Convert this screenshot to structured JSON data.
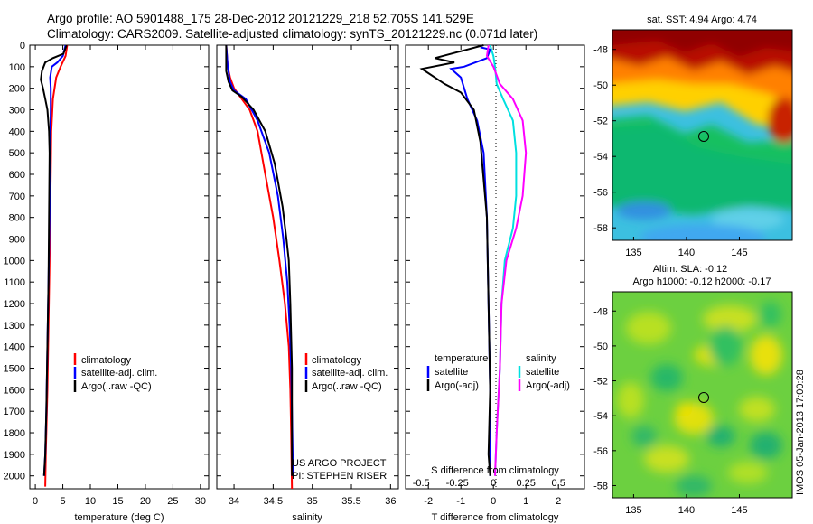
{
  "header": {
    "line1": "Argo profile: AO 5901488_175 28-Dec-2012 20121229_218 52.705S 141.529E",
    "line2": "Climatology: CARS2009. Satellite-adjusted climatology: synTS_20121229.nc (0.071d later)"
  },
  "colors": {
    "climatology": "#ff0000",
    "satellite": "#0000ff",
    "argo": "#000000",
    "sat_salinity": "#00e0e0",
    "argo_salinity": "#ff00ff"
  },
  "chart_data": [
    {
      "id": "temperature",
      "type": "line",
      "xlabel": "temperature (deg C)",
      "ylabel": "",
      "xlim": [
        -1,
        31.5
      ],
      "ylim": [
        2060,
        0
      ],
      "xticks": [
        0,
        5,
        10,
        15,
        20,
        25,
        30
      ],
      "yticks": [
        0,
        100,
        200,
        300,
        400,
        500,
        600,
        700,
        800,
        900,
        1000,
        1100,
        1200,
        1300,
        1400,
        1500,
        1600,
        1700,
        1800,
        1900,
        2000
      ],
      "legend": [
        "climatology",
        "satellite-adj. clim.",
        "Argo(..raw -QC)"
      ],
      "series": [
        {
          "name": "climatology",
          "color": "#ff0000",
          "points": [
            [
              5.8,
              0
            ],
            [
              5.5,
              50
            ],
            [
              4.6,
              100
            ],
            [
              3.8,
              150
            ],
            [
              3.2,
              250
            ],
            [
              2.9,
              400
            ],
            [
              2.8,
              600
            ],
            [
              2.7,
              800
            ],
            [
              2.6,
              1000
            ],
            [
              2.4,
              1300
            ],
            [
              2.2,
              1600
            ],
            [
              1.9,
              1900
            ],
            [
              1.8,
              2050
            ]
          ]
        },
        {
          "name": "satellite-adj. clim.",
          "color": "#0000ff",
          "points": [
            [
              5.5,
              0
            ],
            [
              5.0,
              50
            ],
            [
              4.0,
              80
            ],
            [
              3.0,
              100
            ],
            [
              2.7,
              150
            ],
            [
              2.8,
              200
            ],
            [
              2.8,
              300
            ],
            [
              2.7,
              500
            ],
            [
              2.6,
              800
            ],
            [
              2.4,
              1100
            ],
            [
              2.2,
              1400
            ],
            [
              2.0,
              1700
            ],
            [
              1.8,
              1900
            ],
            [
              1.6,
              2000
            ]
          ]
        },
        {
          "name": "Argo(..raw -QC)",
          "color": "#000000",
          "points": [
            [
              5.7,
              0
            ],
            [
              5.1,
              40
            ],
            [
              3.2,
              60
            ],
            [
              1.8,
              80
            ],
            [
              1.2,
              120
            ],
            [
              1.0,
              160
            ],
            [
              1.4,
              200
            ],
            [
              1.8,
              250
            ],
            [
              2.2,
              300
            ],
            [
              2.5,
              400
            ],
            [
              2.6,
              500
            ],
            [
              2.5,
              800
            ],
            [
              2.4,
              1100
            ],
            [
              2.2,
              1400
            ],
            [
              2.0,
              1700
            ],
            [
              1.8,
              1900
            ],
            [
              1.6,
              2000
            ]
          ]
        }
      ]
    },
    {
      "id": "salinity",
      "type": "line",
      "xlabel": "salinity",
      "ylabel": "",
      "xlim": [
        33.78,
        36.1
      ],
      "ylim": [
        2060,
        0
      ],
      "xticks": [
        34,
        34.5,
        35,
        35.5,
        36
      ],
      "xticklabels": [
        "34",
        "34.5",
        "35",
        "35.5",
        "36"
      ],
      "legend": [
        "climatology",
        "satellite-adj. clim.",
        "Argo(..raw -QC)"
      ],
      "annotations": [
        "US ARGO PROJECT",
        "PI: STEPHEN RISER"
      ],
      "series": [
        {
          "name": "climatology",
          "color": "#ff0000",
          "points": [
            [
              33.9,
              0
            ],
            [
              33.92,
              100
            ],
            [
              33.95,
              150
            ],
            [
              34.0,
              200
            ],
            [
              34.1,
              250
            ],
            [
              34.2,
              300
            ],
            [
              34.3,
              400
            ],
            [
              34.4,
              600
            ],
            [
              34.5,
              800
            ],
            [
              34.58,
              1000
            ],
            [
              34.65,
              1200
            ],
            [
              34.7,
              1400
            ],
            [
              34.72,
              1600
            ],
            [
              34.73,
              1800
            ],
            [
              34.74,
              2060
            ]
          ]
        },
        {
          "name": "satellite-adj. clim.",
          "color": "#0000ff",
          "points": [
            [
              33.9,
              0
            ],
            [
              33.92,
              100
            ],
            [
              33.95,
              170
            ],
            [
              34.0,
              210
            ],
            [
              34.15,
              250
            ],
            [
              34.3,
              350
            ],
            [
              34.45,
              500
            ],
            [
              34.56,
              700
            ],
            [
              34.63,
              900
            ],
            [
              34.68,
              1100
            ],
            [
              34.71,
              1300
            ],
            [
              34.73,
              1500
            ],
            [
              34.74,
              1700
            ],
            [
              34.75,
              1900
            ],
            [
              34.75,
              2000
            ]
          ]
        },
        {
          "name": "Argo(..raw -QC)",
          "color": "#000000",
          "points": [
            [
              33.9,
              0
            ],
            [
              33.9,
              120
            ],
            [
              33.93,
              170
            ],
            [
              33.98,
              210
            ],
            [
              34.1,
              240
            ],
            [
              34.25,
              300
            ],
            [
              34.4,
              400
            ],
            [
              34.52,
              550
            ],
            [
              34.62,
              750
            ],
            [
              34.67,
              900
            ],
            [
              34.7,
              1000
            ],
            [
              34.72,
              1200
            ],
            [
              34.74,
              1500
            ],
            [
              34.74,
              1800
            ],
            [
              34.74,
              2000
            ]
          ]
        }
      ]
    },
    {
      "id": "difference",
      "type": "line",
      "xlabel": "T difference from climatology",
      "xlabel_top": "S difference from climatology",
      "ylabel": "",
      "xlim": [
        -2.7,
        2.8
      ],
      "ylim": [
        2060,
        0
      ],
      "xticks": [
        -2,
        -1,
        0,
        1,
        2
      ],
      "xticklabels": [
        "-2",
        "-1",
        "0",
        "1",
        "2"
      ],
      "sticks": [
        -2,
        -1,
        0,
        1,
        2
      ],
      "sticklabels": [
        "-0.5",
        "-0.25",
        "0",
        "0.25",
        "0.5"
      ],
      "legend_headers": [
        "temperature",
        "salinity"
      ],
      "legend": [
        "satellite",
        "Argo(-adj)",
        "satellite",
        "Argo(-adj)"
      ],
      "series": [
        {
          "name": "satellite",
          "group": "temperature",
          "color": "#0000ff",
          "points": [
            [
              -0.4,
              10
            ],
            [
              -0.1,
              20
            ],
            [
              -0.2,
              60
            ],
            [
              -0.9,
              100
            ],
            [
              -1.3,
              110
            ],
            [
              -1.0,
              150
            ],
            [
              -0.8,
              250
            ],
            [
              -0.5,
              350
            ],
            [
              -0.3,
              500
            ],
            [
              -0.2,
              800
            ],
            [
              -0.15,
              1200
            ],
            [
              -0.1,
              1600
            ],
            [
              -0.1,
              1900
            ],
            [
              -0.1,
              2000
            ]
          ]
        },
        {
          "name": "Argo(-adj)",
          "group": "temperature",
          "color": "#000000",
          "points": [
            [
              -0.3,
              0
            ],
            [
              -0.8,
              20
            ],
            [
              -1.8,
              60
            ],
            [
              -1.2,
              80
            ],
            [
              -2.2,
              110
            ],
            [
              -1.5,
              180
            ],
            [
              -1.0,
              220
            ],
            [
              -0.6,
              300
            ],
            [
              -0.4,
              450
            ],
            [
              -0.2,
              800
            ],
            [
              -0.15,
              1200
            ],
            [
              -0.1,
              1600
            ],
            [
              -0.15,
              1900
            ],
            [
              -0.1,
              2000
            ]
          ]
        },
        {
          "name": "satellite",
          "group": "salinity",
          "color": "#00e0e0",
          "points": [
            [
              -0.1,
              0
            ],
            [
              0,
              50
            ],
            [
              0.05,
              100
            ],
            [
              0.1,
              180
            ],
            [
              0.3,
              250
            ],
            [
              0.6,
              350
            ],
            [
              0.7,
              500
            ],
            [
              0.7,
              700
            ],
            [
              0.6,
              850
            ],
            [
              0.35,
              1000
            ],
            [
              0.25,
              1200
            ],
            [
              0.2,
              1500
            ],
            [
              0.1,
              1800
            ],
            [
              0.05,
              2000
            ]
          ]
        },
        {
          "name": "Argo(-adj)",
          "group": "salinity",
          "color": "#ff00ff",
          "points": [
            [
              -0.15,
              0
            ],
            [
              -0.2,
              50
            ],
            [
              0.0,
              100
            ],
            [
              0.2,
              180
            ],
            [
              0.6,
              250
            ],
            [
              0.9,
              350
            ],
            [
              1.0,
              500
            ],
            [
              0.9,
              700
            ],
            [
              0.7,
              850
            ],
            [
              0.4,
              1000
            ],
            [
              0.25,
              1200
            ],
            [
              0.2,
              1500
            ],
            [
              0.1,
              1800
            ],
            [
              0.05,
              2000
            ]
          ]
        }
      ]
    },
    {
      "id": "sst_map",
      "type": "heatmap",
      "title": "sat. SST: 4.94  Argo: 4.74",
      "xlim": [
        133,
        150
      ],
      "ylim": [
        -58.7,
        -46.9
      ],
      "xticks": [
        135,
        140,
        145
      ],
      "yticks": [
        -48,
        -50,
        -52,
        -54,
        -56,
        -58
      ],
      "marker": [
        141.53,
        -52.7
      ]
    },
    {
      "id": "sla_map",
      "type": "heatmap",
      "title": "Altim. SLA: -0.12",
      "subtitle": "Argo h1000: -0.12  h2000: -0.17",
      "xlim": [
        133,
        150
      ],
      "ylim": [
        -58.7,
        -46.9
      ],
      "xticks": [
        135,
        140,
        145
      ],
      "yticks": [
        -48,
        -50,
        -52,
        -54,
        -56,
        -58
      ],
      "marker": [
        141.53,
        -52.7
      ],
      "side_label": "IMOS 05-Jan-2013 17:00:28"
    }
  ]
}
